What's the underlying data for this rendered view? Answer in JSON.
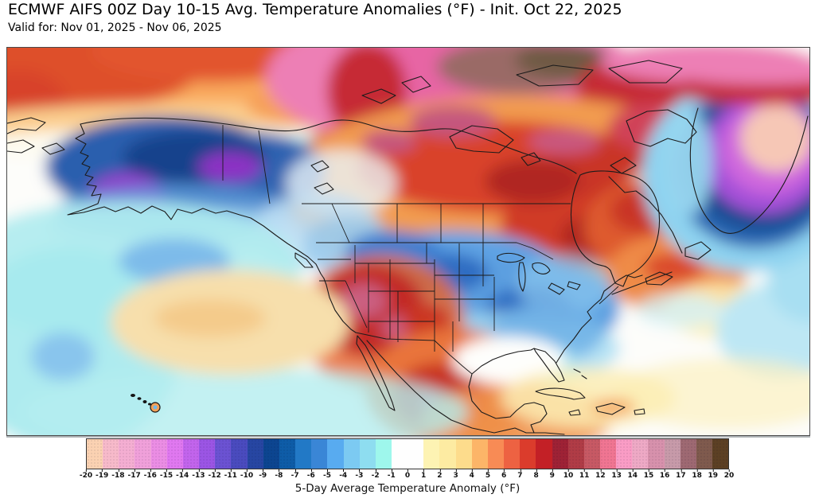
{
  "header": {
    "title": "ECMWF AIFS 00Z Day 10-15 Avg. Temperature Anomalies (°F) - Init. Oct 22, 2025",
    "subtitle": "Valid for: Nov 01, 2025 - Nov 06, 2025"
  },
  "map": {
    "projection": "North America overview (Pacific to Atlantic, Arctic to Caribbean)",
    "visible_features": [
      {
        "region": "Canadian Arctic Archipelago / Nunavut",
        "anomaly_f": "+12 to +20 (extreme warm, pink to brown shading)"
      },
      {
        "region": "Central and Eastern Canada incl. Hudson Bay and Quebec",
        "anomaly_f": "+5 to +10 (strong warm, orange-red)"
      },
      {
        "region": "Alaska and Yukon",
        "anomaly_f": "-8 to -15 (strong cold, blue-purple core)"
      },
      {
        "region": "Greenland interior",
        "anomaly_f": "-12 to -20 (cold, purple ring with pale core)"
      },
      {
        "region": "US Midwest, Great Lakes, East and Southeast",
        "anomaly_f": "-2 to -8 (cold, blue)"
      },
      {
        "region": "US Southwest (Nevada/Arizona/New Mexico) and Mexico",
        "anomaly_f": "+6 to +12 (hot, dark red/magenta)"
      },
      {
        "region": "Northeast Pacific",
        "anomaly_f": "-1 to -3 cool bands with +1 to +3 warm patch mid-Pacific"
      },
      {
        "region": "Western Atlantic near Nova Scotia",
        "anomaly_f": "+4 to +8 (warm, orange)"
      },
      {
        "region": "Bering Sea / Arctic Ocean north of Alaska",
        "anomaly_f": "+4 to +8 (warm band)"
      }
    ]
  },
  "colorbar": {
    "label": "5-Day Average Temperature Anomaly (°F)",
    "min": -20,
    "max": 20,
    "ticks": [
      -20,
      -19,
      -18,
      -17,
      -16,
      -15,
      -14,
      -13,
      -12,
      -11,
      -10,
      -9,
      -8,
      -7,
      -6,
      -5,
      -4,
      -3,
      -2,
      -1,
      0,
      1,
      2,
      3,
      4,
      5,
      6,
      7,
      8,
      9,
      10,
      11,
      12,
      13,
      14,
      15,
      16,
      17,
      18,
      19,
      20
    ],
    "segment_colors": [
      "#fbd2b2",
      "#f7baca",
      "#f4aed2",
      "#f0a0da",
      "#eb8de4",
      "#e078f0",
      "#c264ec",
      "#9b55e4",
      "#6b52d2",
      "#4a4bbe",
      "#2746a2",
      "#0c4590",
      "#0e5ca7",
      "#2279c6",
      "#3a86d6",
      "#58abf0",
      "#7ccaf2",
      "#8eddf0",
      "#9ef7ec",
      "#fefefe",
      "#fefefe",
      "#fdf3b3",
      "#fdeba2",
      "#fddc8c",
      "#fcb568",
      "#f88b55",
      "#ed6242",
      "#db3c2c",
      "#c32026",
      "#9e2235",
      "#b03c46",
      "#c75964",
      "#f07592",
      "#fa9cc5",
      "#eea9c5",
      "#d791ac",
      "#c79aa9",
      "#9e6972",
      "#7f5a4d",
      "#5c4024"
    ]
  }
}
